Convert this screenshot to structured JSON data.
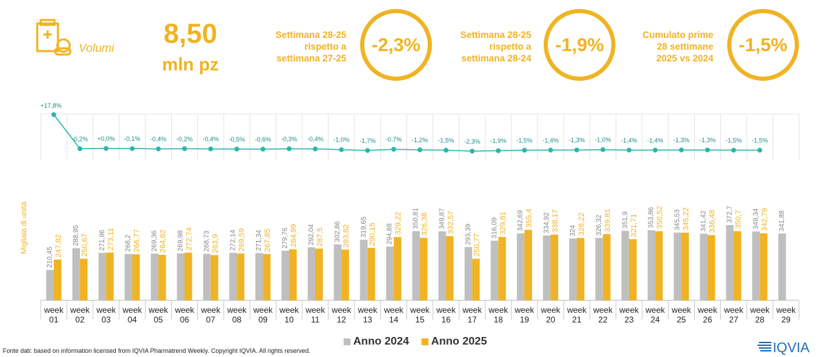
{
  "header": {
    "kpi_label": "Volumi",
    "kpi_value": "8,50",
    "kpi_unit": "mln pz",
    "comparisons": [
      {
        "label": [
          "Settimana 28-25",
          "rispetto a",
          "settimana 27-25"
        ],
        "value": "-2,3%"
      },
      {
        "label": [
          "Settimana 28-25",
          "rispetto a",
          "settimana 28-24"
        ],
        "value": "-1,9%"
      },
      {
        "label": [
          "Cumulato prime",
          "28 settimane",
          "2025 vs 2024"
        ],
        "value": "-1,5%"
      }
    ],
    "icon": "medicine-box-icon"
  },
  "colors": {
    "accent": "#F0B323",
    "series_2024": "#BFBFBF",
    "series_2025": "#F0B323",
    "line": "#2AB7A9"
  },
  "chart_data": {
    "type": "bar",
    "ylabel": "Migliaia di unità",
    "categories": [
      "week 01",
      "week 02",
      "week 03",
      "week 04",
      "week 05",
      "week 06",
      "week 07",
      "week 08",
      "week 09",
      "week 10",
      "week 11",
      "week 12",
      "week 13",
      "week 14",
      "week 15",
      "week 16",
      "week 17",
      "week 18",
      "week 19",
      "week 20",
      "week 21",
      "week 22",
      "week 23",
      "week 24",
      "week 25",
      "week 26",
      "week 27",
      "week 28",
      "week 29"
    ],
    "series": [
      {
        "name": "Anno 2024",
        "values": [
          210.45,
          288.95,
          271.96,
          268.2,
          269.36,
          269.98,
          268.73,
          272.14,
          271.34,
          279.76,
          292.04,
          302.86,
          319.65,
          294.88,
          350.81,
          349.87,
          293.39,
          316.09,
          342.69,
          334.92,
          324,
          326.32,
          351.9,
          353.86,
          345.53,
          341.42,
          372.7,
          349.34,
          341.88
        ],
        "labels": [
          "210,45",
          "288,95",
          "271,96",
          "268,2",
          "269,36",
          "269,98",
          "268,73",
          "272,14",
          "271,34",
          "279,76",
          "292,04",
          "302,86",
          "319,65",
          "294,88",
          "350,81",
          "349,87",
          "293,39",
          "316,09",
          "342,69",
          "334,92",
          "324",
          "326,32",
          "351,9",
          "353,86",
          "345,53",
          "341,42",
          "372,7",
          "349,34",
          "341,88"
        ]
      },
      {
        "name": "Anno 2025",
        "values": [
          247.82,
          250.67,
          273.11,
          266.77,
          264.82,
          272.74,
          263.9,
          269.59,
          267.85,
          284.99,
          287.5,
          283.82,
          290.15,
          329.22,
          326.38,
          332.57,
          250.77,
          329.81,
          355.4,
          338.17,
          326.22,
          339.81,
          321.71,
          350.52,
          345.22,
          336.48,
          350.7,
          342.79,
          null
        ],
        "labels": [
          "247,82",
          "250,67",
          "273,11",
          "266,77",
          "264,82",
          "272,74",
          "263,9",
          "269,59",
          "267,85",
          "284,99",
          "287,5",
          "283,82",
          "290,15",
          "329,22",
          "326,38",
          "332,57",
          "250,77",
          "329,81",
          "355,4",
          "338,17",
          "326,22",
          "339,81",
          "321,71",
          "350,52",
          "345,22",
          "336,48",
          "350,7",
          "342,79",
          ""
        ]
      }
    ],
    "variation": {
      "values": [
        17.8,
        -0.2,
        0.0,
        -0.1,
        -0.4,
        -0.2,
        -0.4,
        -0.5,
        -0.6,
        -0.3,
        -0.4,
        -1.0,
        -1.7,
        -0.7,
        -1.2,
        -1.5,
        -2.3,
        -1.9,
        -1.5,
        -1.4,
        -1.3,
        -1.0,
        -1.4,
        -1.4,
        -1.3,
        -1.3,
        -1.5,
        -1.5
      ],
      "labels": [
        "+17,8%",
        "-0,2%",
        "+0,0%",
        "-0,1%",
        "-0,4%",
        "-0,2%",
        "-0,4%",
        "-0,5%",
        "-0,6%",
        "-0,3%",
        "-0,4%",
        "-1,0%",
        "-1,7%",
        "-0,7%",
        "-1,2%",
        "-1,5%",
        "-2,3%",
        "-1,9%",
        "-1,5%",
        "-1,4%",
        "-1,3%",
        "-1,0%",
        "-1,4%",
        "-1,4%",
        "-1,3%",
        "-1,3%",
        "-1,5%",
        "-1,5%"
      ]
    },
    "legend": "bottom-center"
  },
  "footer": {
    "source": "Fonte dati: based on information licensed from IQVIA Pharmatrend Weekly. Copyright IQVIA. All rights reserved.",
    "brand": "IQVIA"
  }
}
